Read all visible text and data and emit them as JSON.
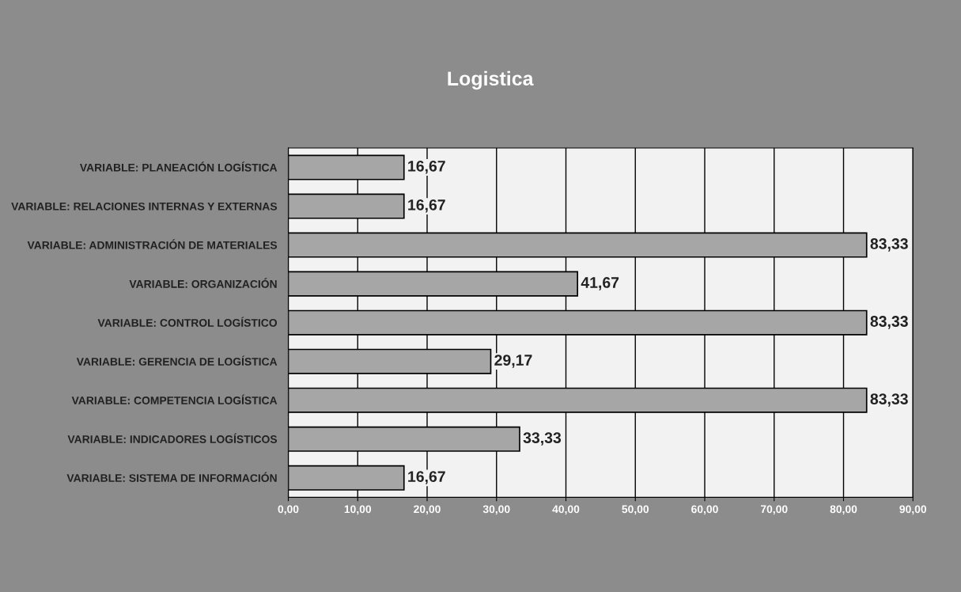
{
  "chart_data": {
    "type": "bar",
    "orientation": "horizontal",
    "title": "Logistica",
    "categories": [
      "VARIABLE: PLANEACIÓN LOGÍSTICA",
      "VARIABLE: RELACIONES INTERNAS Y EXTERNAS",
      "VARIABLE: ADMINISTRACIÓN DE MATERIALES",
      "VARIABLE: ORGANIZACIÓN",
      "VARIABLE: CONTROL LOGÍSTICO",
      "VARIABLE: GERENCIA DE LOGÍSTICA",
      "VARIABLE: COMPETENCIA LOGÍSTICA",
      "VARIABLE: INDICADORES LOGÍSTICOS",
      "VARIABLE: SISTEMA DE INFORMACIÓN"
    ],
    "values": [
      16.67,
      16.67,
      83.33,
      41.67,
      83.33,
      29.17,
      83.33,
      33.33,
      16.67
    ],
    "value_labels": [
      "16,67",
      "16,67",
      "83,33",
      "41,67",
      "83,33",
      "29,17",
      "83,33",
      "33,33",
      "16,67"
    ],
    "color": "#a6a6a6",
    "xlim": [
      0,
      90
    ],
    "xticks": [
      {
        "value": 0,
        "label": "0,00"
      },
      {
        "value": 10,
        "label": "10,00"
      },
      {
        "value": 20,
        "label": "20,00"
      },
      {
        "value": 30,
        "label": "30,00"
      },
      {
        "value": 40,
        "label": "40,00"
      },
      {
        "value": 50,
        "label": "50,00"
      },
      {
        "value": 60,
        "label": "60,00"
      },
      {
        "value": 70,
        "label": "70,00"
      },
      {
        "value": 80,
        "label": "80,00"
      },
      {
        "value": 90,
        "label": "90,00"
      }
    ],
    "grid": "x"
  }
}
